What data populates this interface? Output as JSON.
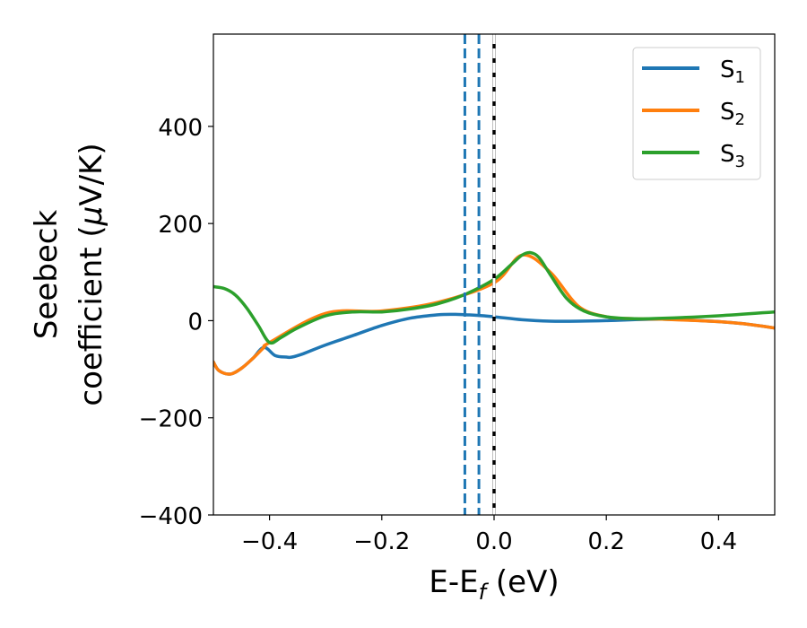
{
  "chart_data": {
    "type": "line",
    "xlabel": "E-E_f (eV)",
    "xlabel_main": "E-E",
    "xlabel_sub": "f",
    "xlabel_unit": " (eV)",
    "ylabel_line1": "Seebeck",
    "ylabel_line2_prefix": "coefficient  (",
    "ylabel_mu": "μ",
    "ylabel_line2_suffix": "V/K)",
    "xlim": [
      -0.5,
      0.5
    ],
    "ylim": [
      -400,
      590
    ],
    "x_ticks": [
      -0.4,
      -0.2,
      0.0,
      0.2,
      0.4
    ],
    "x_tick_labels": [
      "−0.4",
      "−0.2",
      "0.0",
      "0.2",
      "0.4"
    ],
    "y_ticks": [
      -400,
      -200,
      0,
      200,
      400
    ],
    "y_tick_labels": [
      "−400",
      "−200",
      "0",
      "200",
      "400"
    ],
    "grid": false,
    "legend_position": "top-right",
    "vertical_lines": [
      {
        "x": -0.052,
        "style": "dashed",
        "color": "#1f77b4"
      },
      {
        "x": -0.027,
        "style": "dashed",
        "color": "#1f77b4"
      },
      {
        "x": 0.0,
        "style": "solid",
        "color": "#000000"
      },
      {
        "x": 0.0,
        "style": "dashed",
        "color": "#ffffff"
      }
    ],
    "series": [
      {
        "name": "S1",
        "label_main": "S",
        "label_sub": "1",
        "color": "#1f77b4",
        "x": [
          -0.5,
          -0.49,
          -0.47,
          -0.45,
          -0.43,
          -0.41,
          -0.39,
          -0.37,
          -0.36,
          -0.34,
          -0.3,
          -0.25,
          -0.2,
          -0.15,
          -0.1,
          -0.07,
          -0.05,
          -0.03,
          0.0,
          0.05,
          0.1,
          0.15,
          0.2,
          0.3,
          0.4,
          0.45,
          0.5
        ],
        "y": [
          -85,
          -103,
          -110,
          -98,
          -78,
          -55,
          -72,
          -75,
          -75,
          -68,
          -50,
          -30,
          -10,
          5,
          12,
          13,
          12,
          11,
          8,
          2,
          -1,
          -1,
          0,
          3,
          -2,
          -7,
          -15
        ]
      },
      {
        "name": "S2",
        "label_main": "S",
        "label_sub": "2",
        "color": "#ff7f0e",
        "x": [
          -0.5,
          -0.49,
          -0.47,
          -0.45,
          -0.43,
          -0.41,
          -0.4,
          -0.3,
          -0.2,
          -0.1,
          0.0,
          0.05,
          0.1,
          0.15,
          0.2,
          0.25,
          0.3,
          0.4,
          0.45,
          0.5
        ],
        "y": [
          -85,
          -103,
          -110,
          -98,
          -78,
          -55,
          -45,
          15,
          20,
          38,
          78,
          135,
          100,
          30,
          8,
          4,
          3,
          -2,
          -7,
          -15
        ]
      },
      {
        "name": "S3",
        "label_main": "S",
        "label_sub": "3",
        "color": "#2ca02c",
        "x": [
          -0.5,
          -0.48,
          -0.46,
          -0.44,
          -0.42,
          -0.4,
          -0.38,
          -0.35,
          -0.3,
          -0.25,
          -0.2,
          -0.15,
          -0.1,
          -0.05,
          0.0,
          0.03,
          0.05,
          0.065,
          0.08,
          0.1,
          0.13,
          0.16,
          0.2,
          0.25,
          0.3,
          0.4,
          0.5
        ],
        "y": [
          70,
          66,
          52,
          25,
          -10,
          -45,
          -35,
          -15,
          10,
          18,
          18,
          24,
          35,
          55,
          85,
          115,
          135,
          140,
          130,
          95,
          45,
          20,
          8,
          4,
          5,
          10,
          18
        ]
      }
    ]
  }
}
